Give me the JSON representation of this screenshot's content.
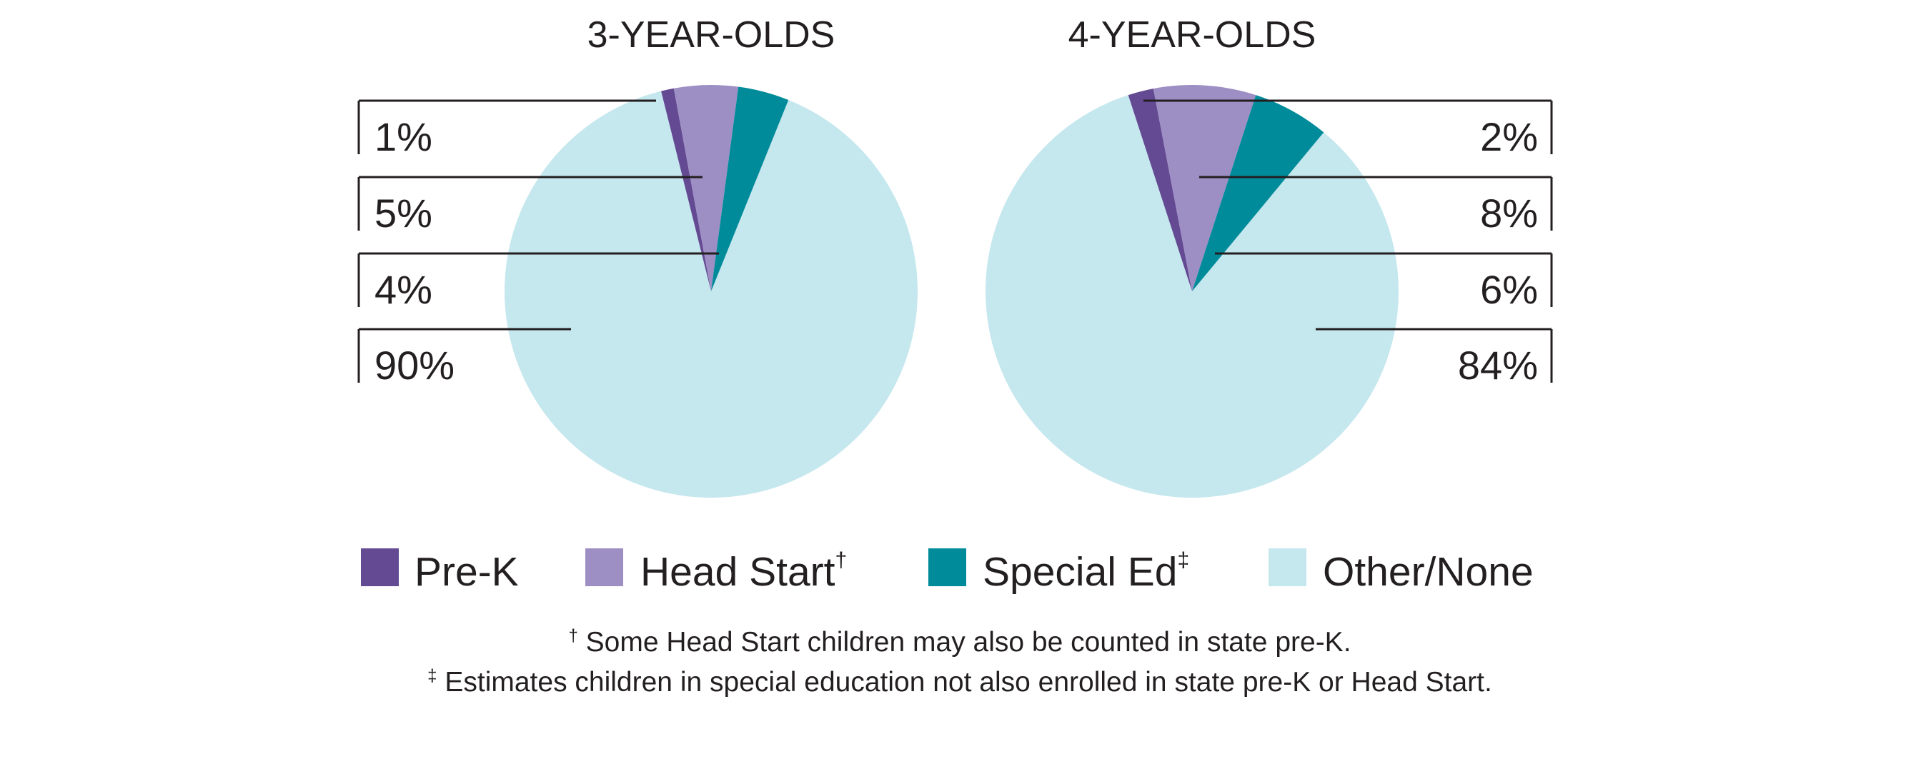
{
  "chart_data": [
    {
      "type": "pie",
      "title": "3-YEAR-OLDS",
      "categories": [
        "Pre-K",
        "Head Start",
        "Special Ed",
        "Other/None"
      ],
      "values": [
        1,
        5,
        4,
        90
      ],
      "labels": [
        "1%",
        "5%",
        "4%",
        "90%"
      ],
      "label_side": "left"
    },
    {
      "type": "pie",
      "title": "4-YEAR-OLDS",
      "categories": [
        "Pre-K",
        "Head Start",
        "Special Ed",
        "Other/None"
      ],
      "values": [
        2,
        8,
        6,
        84
      ],
      "labels": [
        "2%",
        "8%",
        "6%",
        "84%"
      ],
      "label_side": "right"
    }
  ],
  "legend": {
    "placement": "bottom",
    "items": [
      {
        "label": "Pre-K",
        "mark": "",
        "color": "#634a93"
      },
      {
        "label": "Head Start",
        "mark": "†",
        "color": "#9d8ec4"
      },
      {
        "label": "Special Ed",
        "mark": "‡",
        "color": "#008b9b"
      },
      {
        "label": "Other/None",
        "mark": "",
        "color": "#c5e7ee"
      }
    ]
  },
  "footnotes": [
    {
      "mark": "†",
      "text": " Some Head Start children may also be counted in state pre-K."
    },
    {
      "mark": "‡",
      "text": " Estimates children in special education not also enrolled in state pre-K or Head Start."
    }
  ]
}
